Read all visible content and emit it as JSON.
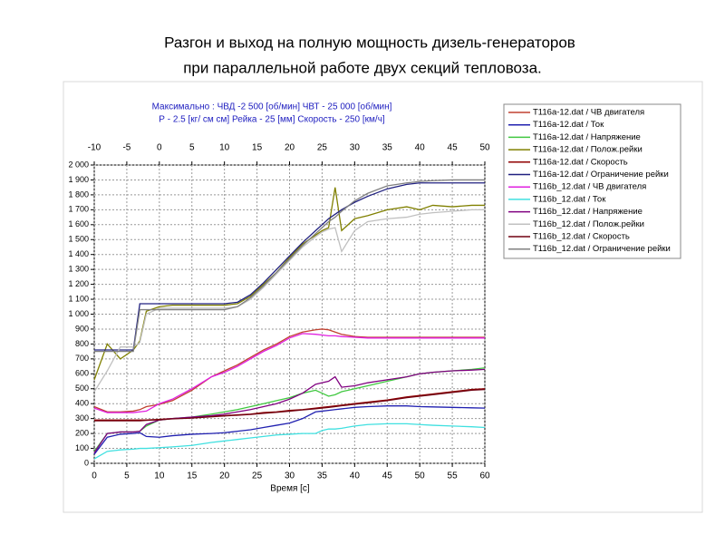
{
  "chart_data": {
    "type": "line",
    "title": "Разгон и выход на полную мощность дизель-генераторов",
    "subtitle": "при параллельной работе двух секций тепловоза.",
    "annotations": [
      "Максимально :   ЧВД -2 500  [об/мин]    ЧВТ - 25 000 [об/мин]",
      "Р - 2.5 [кг/ см см]   Рейка - 25 [мм]  Скорость - 250 [км/ч]"
    ],
    "xlabel": "Время [с]",
    "x": [
      0,
      2,
      4,
      6,
      7,
      8,
      10,
      12,
      15,
      18,
      20,
      22,
      24,
      26,
      28,
      30,
      32,
      34,
      35,
      36,
      37,
      38,
      40,
      42,
      45,
      48,
      50,
      52,
      55,
      58,
      60
    ],
    "xlim": [
      0,
      60
    ],
    "xticks": [
      0,
      5,
      10,
      15,
      20,
      25,
      30,
      35,
      40,
      45,
      50,
      55,
      60
    ],
    "x2lim": [
      -10,
      50
    ],
    "x2ticks": [
      -10,
      -5,
      0,
      5,
      10,
      15,
      20,
      25,
      30,
      35,
      40,
      45,
      50
    ],
    "ylim": [
      0,
      2000
    ],
    "yticks": [
      0,
      100,
      200,
      300,
      400,
      500,
      600,
      700,
      800,
      900,
      {
        "value": 1000,
        "label": "1 000"
      },
      {
        "value": 1100,
        "label": "1 100"
      },
      {
        "value": 1200,
        "label": "1 200"
      },
      {
        "value": 1300,
        "label": "1 300"
      },
      {
        "value": 1400,
        "label": "1 400"
      },
      {
        "value": 1500,
        "label": "1 500"
      },
      {
        "value": 1600,
        "label": "1 600"
      },
      {
        "value": 1700,
        "label": "1 700"
      },
      {
        "value": 1800,
        "label": "1 800"
      },
      {
        "value": 1900,
        "label": "1 900"
      },
      {
        "value": 2000,
        "label": "2 000"
      }
    ],
    "grid": true,
    "legend": "right",
    "series": [
      {
        "name": "T116a-12.dat / ЧВ двигателя",
        "color": "#c04030",
        "values": [
          380,
          345,
          345,
          350,
          360,
          380,
          395,
          420,
          490,
          580,
          620,
          660,
          710,
          760,
          800,
          850,
          880,
          895,
          900,
          895,
          880,
          865,
          850,
          845,
          845,
          845,
          845,
          845,
          845,
          845,
          845
        ]
      },
      {
        "name": "T116a-12.dat / Ток",
        "color": "#2020b0",
        "values": [
          60,
          175,
          195,
          200,
          205,
          180,
          175,
          185,
          195,
          200,
          205,
          215,
          225,
          240,
          255,
          270,
          300,
          345,
          350,
          355,
          360,
          365,
          375,
          380,
          385,
          385,
          380,
          378,
          375,
          372,
          370
        ]
      },
      {
        "name": "T116a-12.dat / Напряжение",
        "color": "#40c840",
        "values": [
          80,
          200,
          210,
          210,
          215,
          250,
          290,
          300,
          310,
          330,
          345,
          360,
          380,
          400,
          420,
          440,
          470,
          490,
          470,
          450,
          460,
          480,
          500,
          520,
          550,
          580,
          600,
          610,
          620,
          630,
          640
        ]
      },
      {
        "name": "T116a-12.dat / Полож.рейки",
        "color": "#808000",
        "values": [
          560,
          800,
          700,
          760,
          820,
          1020,
          1050,
          1060,
          1060,
          1060,
          1060,
          1070,
          1120,
          1200,
          1280,
          1380,
          1470,
          1530,
          1560,
          1580,
          1850,
          1560,
          1640,
          1660,
          1700,
          1720,
          1700,
          1730,
          1720,
          1730,
          1730
        ]
      },
      {
        "name": "T116a-12.dat / Скорость",
        "color": "#900000",
        "values": [
          290,
          290,
          290,
          290,
          290,
          290,
          295,
          300,
          305,
          315,
          320,
          325,
          330,
          340,
          345,
          355,
          360,
          370,
          375,
          380,
          385,
          390,
          400,
          410,
          425,
          445,
          455,
          465,
          480,
          495,
          500
        ]
      },
      {
        "name": "T116a-12.dat / Ограничение рейки",
        "color": "#202080",
        "values": [
          760,
          760,
          760,
          760,
          1070,
          1070,
          1070,
          1070,
          1070,
          1070,
          1070,
          1080,
          1130,
          1210,
          1300,
          1390,
          1480,
          1560,
          1600,
          1640,
          1670,
          1700,
          1750,
          1790,
          1840,
          1870,
          1880,
          1880,
          1880,
          1880,
          1880
        ]
      },
      {
        "name": "T116b_12.dat / ЧВ двигателя",
        "color": "#e020e0",
        "values": [
          370,
          340,
          340,
          340,
          345,
          350,
          400,
          430,
          500,
          580,
          610,
          650,
          700,
          750,
          790,
          840,
          870,
          865,
          860,
          855,
          855,
          850,
          845,
          840,
          840,
          840,
          840,
          840,
          840,
          840,
          840
        ]
      },
      {
        "name": "T116b_12.dat / Ток",
        "color": "#40e0e0",
        "values": [
          30,
          80,
          90,
          95,
          100,
          100,
          105,
          110,
          120,
          140,
          150,
          160,
          170,
          180,
          190,
          195,
          200,
          200,
          220,
          230,
          230,
          235,
          250,
          260,
          265,
          265,
          260,
          255,
          250,
          245,
          240
        ]
      },
      {
        "name": "T116b_12.dat / Напряжение",
        "color": "#800080",
        "values": [
          70,
          200,
          210,
          210,
          215,
          260,
          290,
          300,
          310,
          320,
          330,
          345,
          360,
          380,
          400,
          430,
          470,
          530,
          540,
          550,
          580,
          510,
          520,
          540,
          560,
          580,
          600,
          610,
          620,
          625,
          630
        ]
      },
      {
        "name": "T116b_12.dat / Полож.рейки",
        "color": "#c0c0c0",
        "values": [
          480,
          620,
          780,
          780,
          810,
          1000,
          1040,
          1040,
          1040,
          1040,
          1040,
          1050,
          1100,
          1180,
          1270,
          1360,
          1450,
          1520,
          1550,
          1570,
          1580,
          1420,
          1560,
          1620,
          1640,
          1650,
          1670,
          1680,
          1690,
          1700,
          1700
        ]
      },
      {
        "name": "T116b_12.dat / Скорость",
        "color": "#700010",
        "values": [
          285,
          285,
          285,
          285,
          285,
          288,
          292,
          298,
          303,
          312,
          318,
          322,
          328,
          335,
          342,
          350,
          358,
          366,
          370,
          375,
          380,
          386,
          396,
          405,
          420,
          440,
          450,
          460,
          475,
          490,
          495
        ]
      },
      {
        "name": "T116b_12.dat / Ограничение рейки",
        "color": "#808080",
        "values": [
          750,
          750,
          750,
          750,
          1030,
          1030,
          1030,
          1030,
          1030,
          1030,
          1030,
          1050,
          1110,
          1190,
          1280,
          1370,
          1460,
          1540,
          1580,
          1620,
          1650,
          1690,
          1760,
          1810,
          1860,
          1880,
          1890,
          1895,
          1900,
          1900,
          1900
        ]
      }
    ]
  }
}
